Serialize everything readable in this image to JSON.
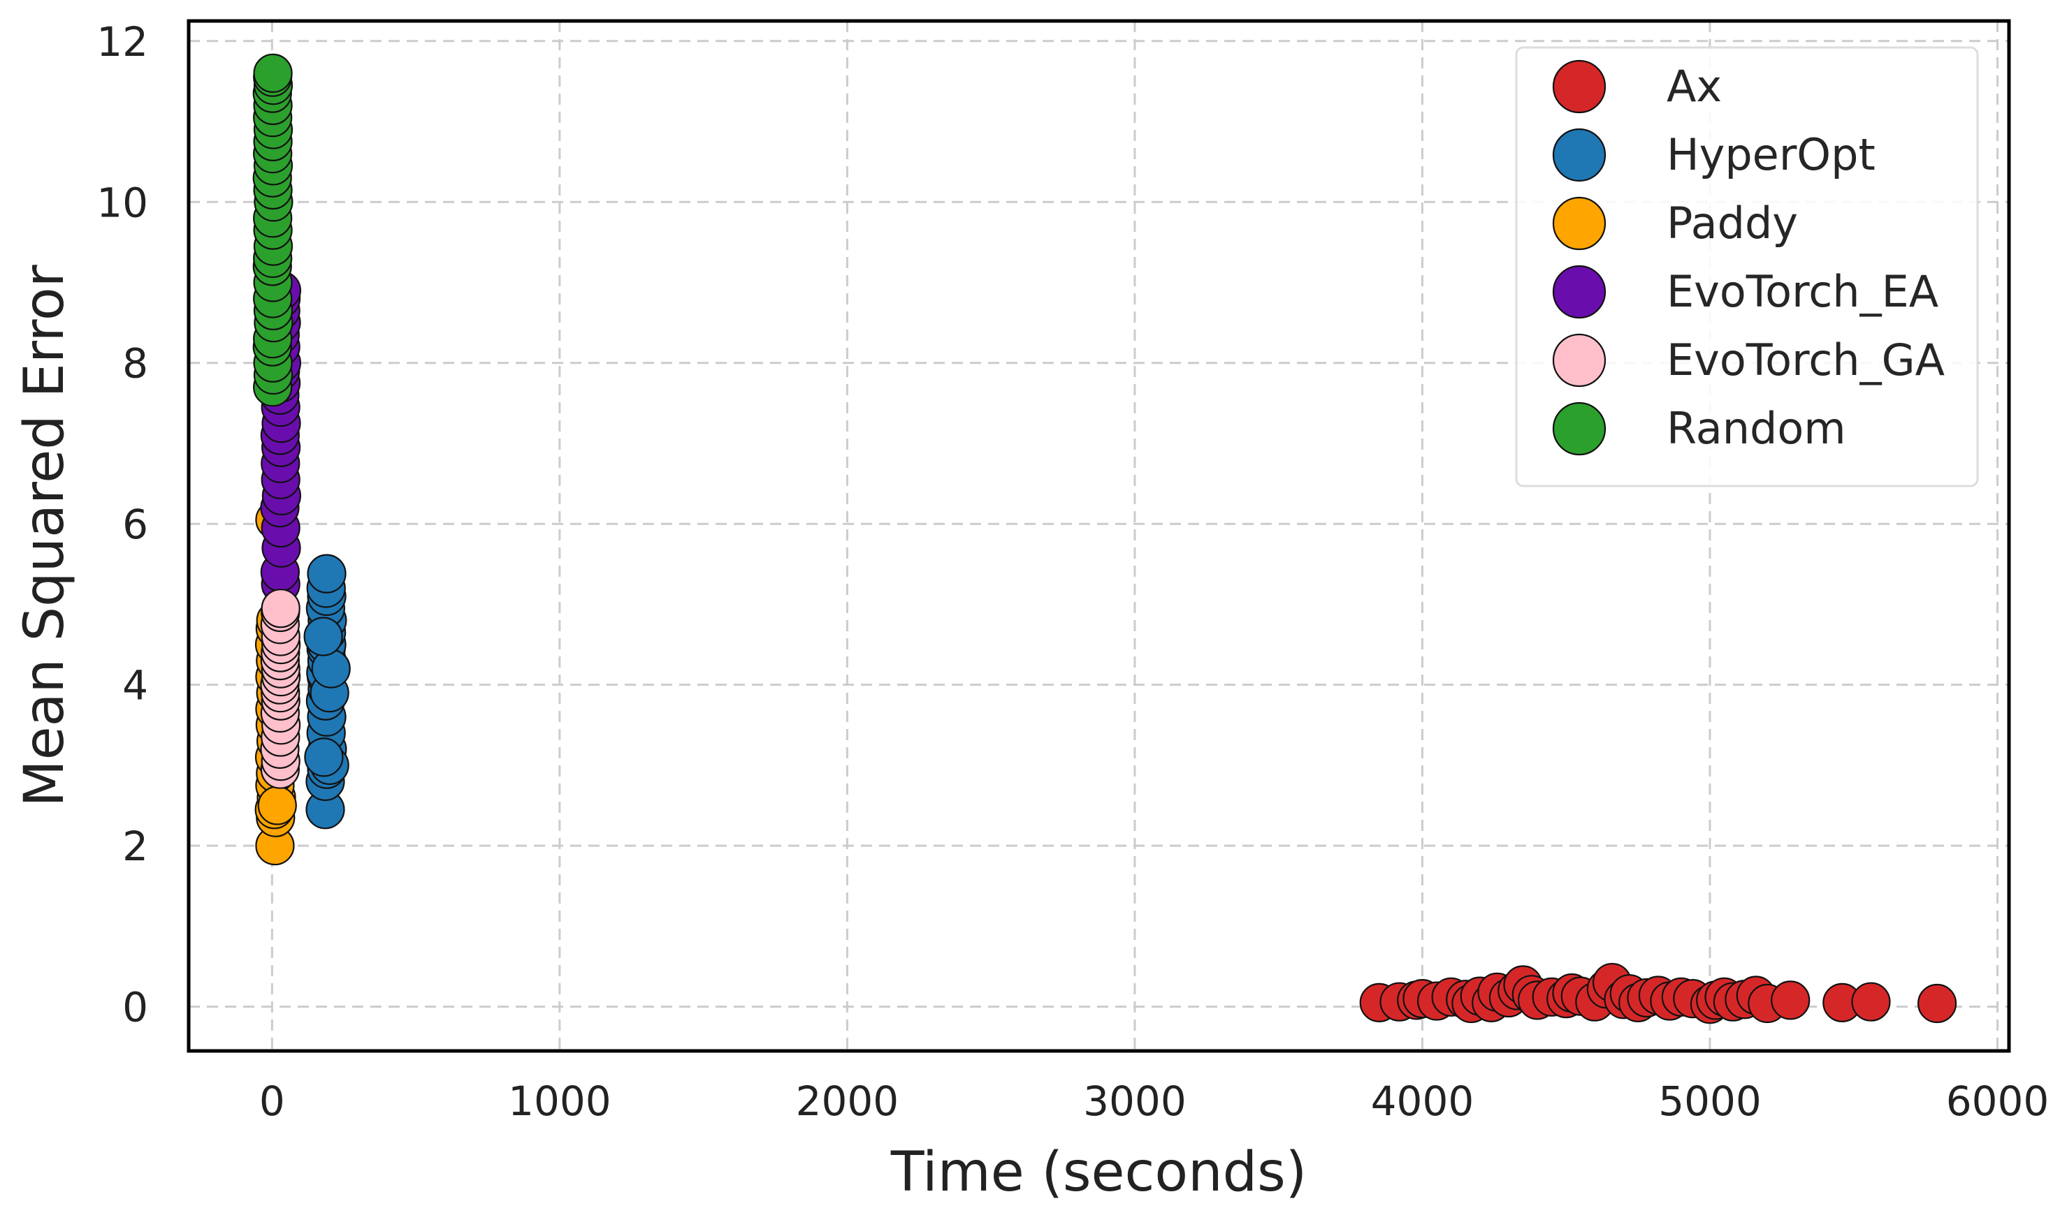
{
  "chart_data": {
    "type": "scatter",
    "xlabel": "Time (seconds)",
    "ylabel": "Mean Squared Error",
    "xlim": [
      -290,
      6040
    ],
    "ylim": [
      -0.55,
      12.25
    ],
    "xticks": [
      0,
      1000,
      2000,
      3000,
      4000,
      5000,
      6000
    ],
    "xtick_labels": [
      "0",
      "1000",
      "2000",
      "3000",
      "4000",
      "5000",
      "6000"
    ],
    "yticks": [
      0,
      2,
      4,
      6,
      8,
      10,
      12
    ],
    "ytick_labels": [
      "0",
      "2",
      "4",
      "6",
      "8",
      "10",
      "12"
    ],
    "grid": true,
    "legend_position": "top-right",
    "series": [
      {
        "name": "Ax",
        "color": "#d62728",
        "points": [
          [
            3850,
            0.05
          ],
          [
            3920,
            0.06
          ],
          [
            3980,
            0.08
          ],
          [
            4000,
            0.1
          ],
          [
            4050,
            0.07
          ],
          [
            4100,
            0.12
          ],
          [
            4150,
            0.09
          ],
          [
            4170,
            0.04
          ],
          [
            4200,
            0.13
          ],
          [
            4240,
            0.05
          ],
          [
            4260,
            0.18
          ],
          [
            4300,
            0.11
          ],
          [
            4330,
            0.2
          ],
          [
            4350,
            0.27
          ],
          [
            4380,
            0.15
          ],
          [
            4400,
            0.08
          ],
          [
            4450,
            0.12
          ],
          [
            4500,
            0.1
          ],
          [
            4520,
            0.17
          ],
          [
            4550,
            0.13
          ],
          [
            4600,
            0.06
          ],
          [
            4640,
            0.22
          ],
          [
            4660,
            0.3
          ],
          [
            4700,
            0.09
          ],
          [
            4720,
            0.16
          ],
          [
            4750,
            0.05
          ],
          [
            4780,
            0.11
          ],
          [
            4820,
            0.14
          ],
          [
            4860,
            0.07
          ],
          [
            4900,
            0.12
          ],
          [
            4940,
            0.1
          ],
          [
            5000,
            0.03
          ],
          [
            5020,
            0.08
          ],
          [
            5050,
            0.12
          ],
          [
            5080,
            0.06
          ],
          [
            5120,
            0.09
          ],
          [
            5160,
            0.14
          ],
          [
            5200,
            0.04
          ],
          [
            5280,
            0.08
          ],
          [
            5460,
            0.05
          ],
          [
            5560,
            0.06
          ],
          [
            5790,
            0.04
          ]
        ]
      },
      {
        "name": "HyperOpt",
        "color": "#1f77b4",
        "points": [
          [
            185,
            2.45
          ],
          [
            185,
            2.8
          ],
          [
            190,
            2.95
          ],
          [
            192,
            3.2
          ],
          [
            188,
            3.4
          ],
          [
            190,
            3.6
          ],
          [
            186,
            3.8
          ],
          [
            192,
            3.95
          ],
          [
            189,
            4.1
          ],
          [
            187,
            4.15
          ],
          [
            191,
            4.3
          ],
          [
            188,
            4.45
          ],
          [
            190,
            4.5
          ],
          [
            189,
            4.65
          ],
          [
            192,
            4.8
          ],
          [
            186,
            4.95
          ],
          [
            190,
            5.1
          ],
          [
            188,
            5.2
          ],
          [
            190,
            5.38
          ],
          [
            200,
            3.0
          ],
          [
            200,
            3.9
          ],
          [
            205,
            4.2
          ],
          [
            180,
            3.1
          ],
          [
            178,
            4.6
          ]
        ]
      },
      {
        "name": "Paddy",
        "color": "#ffa500",
        "points": [
          [
            10,
            2.0
          ],
          [
            12,
            2.35
          ],
          [
            8,
            2.45
          ],
          [
            15,
            2.6
          ],
          [
            10,
            2.75
          ],
          [
            12,
            2.9
          ],
          [
            9,
            3.1
          ],
          [
            14,
            3.3
          ],
          [
            11,
            3.5
          ],
          [
            10,
            3.7
          ],
          [
            13,
            3.9
          ],
          [
            10,
            4.1
          ],
          [
            12,
            4.3
          ],
          [
            9,
            4.5
          ],
          [
            11,
            4.7
          ],
          [
            13,
            4.8
          ],
          [
            10,
            6.05
          ],
          [
            18,
            2.5
          ]
        ]
      },
      {
        "name": "EvoTorch_EA",
        "color": "#6a0dad",
        "points": [
          [
            30,
            5.25
          ],
          [
            28,
            5.4
          ],
          [
            32,
            5.7
          ],
          [
            30,
            5.95
          ],
          [
            27,
            6.2
          ],
          [
            33,
            6.35
          ],
          [
            30,
            6.55
          ],
          [
            29,
            6.75
          ],
          [
            31,
            6.95
          ],
          [
            28,
            7.1
          ],
          [
            32,
            7.25
          ],
          [
            30,
            7.45
          ],
          [
            27,
            7.6
          ],
          [
            31,
            7.75
          ],
          [
            29,
            7.9
          ],
          [
            33,
            8.0
          ],
          [
            30,
            8.2
          ],
          [
            28,
            8.35
          ],
          [
            32,
            8.5
          ],
          [
            30,
            8.65
          ],
          [
            31,
            8.8
          ],
          [
            33,
            8.9
          ]
        ]
      },
      {
        "name": "EvoTorch_GA",
        "color": "#ffc0cb",
        "points": [
          [
            28,
            2.95
          ],
          [
            30,
            3.05
          ],
          [
            27,
            3.2
          ],
          [
            29,
            3.35
          ],
          [
            31,
            3.5
          ],
          [
            28,
            3.65
          ],
          [
            30,
            3.8
          ],
          [
            29,
            3.9
          ],
          [
            27,
            4.0
          ],
          [
            31,
            4.1
          ],
          [
            30,
            4.2
          ],
          [
            28,
            4.3
          ],
          [
            29,
            4.4
          ],
          [
            31,
            4.5
          ],
          [
            30,
            4.6
          ],
          [
            28,
            4.75
          ],
          [
            29,
            4.9
          ],
          [
            30,
            4.95
          ]
        ]
      },
      {
        "name": "Random",
        "color": "#2ca02c",
        "points": [
          [
            2,
            7.7
          ],
          [
            4,
            7.85
          ],
          [
            3,
            8.0
          ],
          [
            1,
            8.2
          ],
          [
            2,
            8.3
          ],
          [
            5,
            8.5
          ],
          [
            4,
            8.65
          ],
          [
            2,
            8.8
          ],
          [
            3,
            9.0
          ],
          [
            1,
            9.2
          ],
          [
            2,
            9.3
          ],
          [
            4,
            9.45
          ],
          [
            3,
            9.65
          ],
          [
            2,
            9.8
          ],
          [
            5,
            10.0
          ],
          [
            3,
            10.15
          ],
          [
            1,
            10.3
          ],
          [
            4,
            10.45
          ],
          [
            2,
            10.6
          ],
          [
            3,
            10.75
          ],
          [
            4,
            10.9
          ],
          [
            2,
            11.05
          ],
          [
            3,
            11.2
          ],
          [
            1,
            11.35
          ],
          [
            4,
            11.45
          ],
          [
            2,
            11.55
          ],
          [
            3,
            11.6
          ]
        ]
      }
    ]
  }
}
